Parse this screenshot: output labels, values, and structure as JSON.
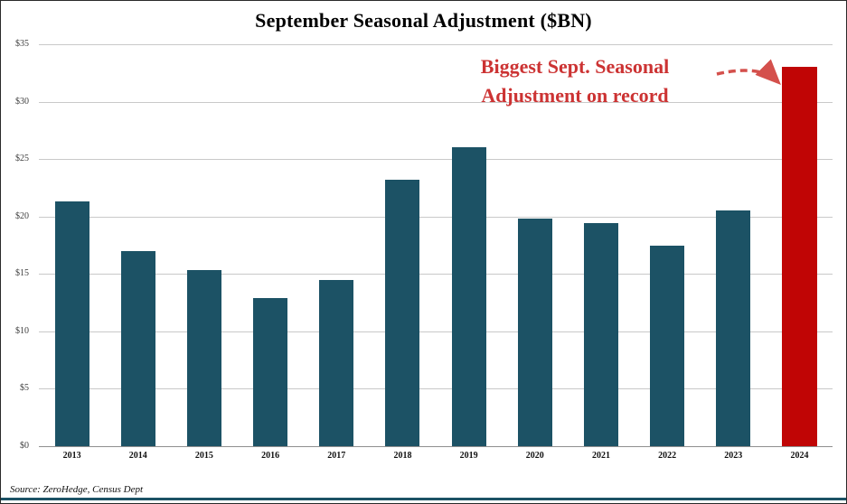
{
  "source": "Source: ZeroHedge, Census Dept",
  "annotation": {
    "line1": "Biggest Sept. Seasonal",
    "line2": "Adjustment on record",
    "color": "#cc3333",
    "arrow_color": "#d4504c"
  },
  "chart_data": {
    "type": "bar",
    "title": "September Seasonal Adjustment ($BN)",
    "categories": [
      "2013",
      "2014",
      "2015",
      "2016",
      "2017",
      "2018",
      "2019",
      "2020",
      "2021",
      "2022",
      "2023",
      "2024"
    ],
    "values": [
      21.3,
      17.0,
      15.3,
      12.9,
      14.5,
      23.2,
      26.0,
      19.8,
      19.4,
      17.5,
      20.5,
      33.0
    ],
    "xlabel": "",
    "ylabel": "",
    "ylim": [
      0,
      35
    ],
    "ytick_values": [
      0,
      5,
      10,
      15,
      20,
      25,
      30,
      35
    ],
    "ytick_labels": [
      "$0",
      "$5",
      "$10",
      "$15",
      "$20",
      "$25",
      "$30",
      "$35"
    ],
    "grid": true,
    "legend": false,
    "bar_color": "#1c5265",
    "highlight_category": "2024",
    "highlight_color": "#c00505",
    "annotation": "Biggest Sept. Seasonal Adjustment on record"
  }
}
